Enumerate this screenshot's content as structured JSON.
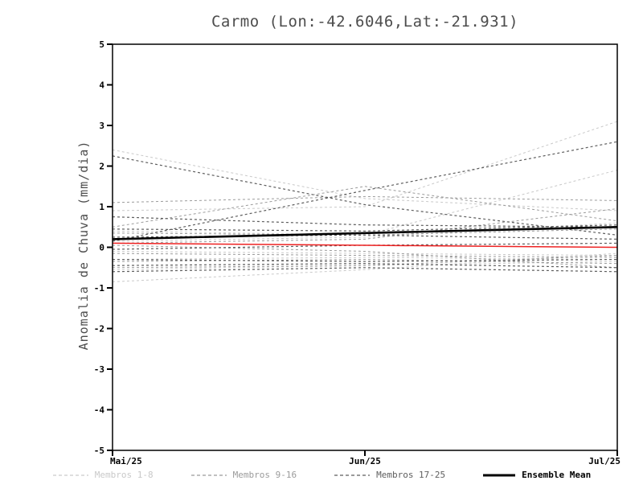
{
  "title": "Carmo (Lon:-42.6046,Lat:-21.931)",
  "ylabel": "Anomalia de Chuva (mm/dia)",
  "legend": {
    "items": [
      {
        "label": "Membros 1-8",
        "color": "#c9c9c9",
        "dash": true
      },
      {
        "label": "Membros 9-16",
        "color": "#9b9b9b",
        "dash": true
      },
      {
        "label": "Membros 17-25",
        "color": "#5e5e5e",
        "dash": true
      },
      {
        "label": "Ensemble Mean",
        "color": "#000000",
        "dash": false
      }
    ]
  },
  "chart_data": {
    "type": "line",
    "title": "Carmo (Lon:-42.6046,Lat:-21.931)",
    "xlabel": "",
    "ylabel": "Anomalia de Chuva (mm/dia)",
    "x_ticks": [
      "Mai/25",
      "Jun/25",
      "Jul/25"
    ],
    "ylim": [
      -5,
      5
    ],
    "y_tick_step": 1,
    "grid": false,
    "legend_position": "bottom",
    "groups": [
      {
        "name": "Membros 1-8",
        "color": "#c9c9c9",
        "dash": "3,3",
        "width": 1
      },
      {
        "name": "Membros 9-16",
        "color": "#9b9b9b",
        "dash": "3,3",
        "width": 1
      },
      {
        "name": "Membros 17-25",
        "color": "#5e5e5e",
        "dash": "3,3",
        "width": 1.2
      },
      {
        "name": "Ensemble Mean",
        "color": "#000000",
        "dash": null,
        "width": 2.6
      }
    ],
    "series": [
      {
        "name": "member-1",
        "group": 0,
        "values": [
          2.4,
          1.2,
          0.9
        ]
      },
      {
        "name": "member-2",
        "group": 0,
        "values": [
          0.9,
          1.0,
          3.1
        ]
      },
      {
        "name": "member-3",
        "group": 0,
        "values": [
          0.4,
          0.3,
          1.9
        ]
      },
      {
        "name": "member-4",
        "group": 0,
        "values": [
          0.15,
          0.25,
          0.6
        ]
      },
      {
        "name": "member-5",
        "group": 0,
        "values": [
          -0.1,
          -0.15,
          -0.2
        ]
      },
      {
        "name": "member-6",
        "group": 0,
        "values": [
          -0.3,
          -0.25,
          -0.3
        ]
      },
      {
        "name": "member-7",
        "group": 0,
        "values": [
          -0.55,
          -0.45,
          -0.35
        ]
      },
      {
        "name": "member-8",
        "group": 0,
        "values": [
          -0.85,
          -0.55,
          -0.15
        ]
      },
      {
        "name": "member-9",
        "group": 1,
        "values": [
          1.1,
          1.25,
          1.15
        ]
      },
      {
        "name": "member-10",
        "group": 1,
        "values": [
          0.5,
          1.5,
          0.65
        ]
      },
      {
        "name": "member-11",
        "group": 1,
        "values": [
          0.35,
          0.3,
          0.45
        ]
      },
      {
        "name": "member-12",
        "group": 1,
        "values": [
          0.1,
          0.2,
          0.95
        ]
      },
      {
        "name": "member-13",
        "group": 1,
        "values": [
          -0.15,
          -0.2,
          -0.25
        ]
      },
      {
        "name": "member-14",
        "group": 1,
        "values": [
          -0.35,
          -0.3,
          -0.4
        ]
      },
      {
        "name": "member-15",
        "group": 1,
        "values": [
          -0.5,
          -0.45,
          -0.2
        ]
      },
      {
        "name": "member-16",
        "group": 1,
        "values": [
          0.05,
          -0.1,
          -0.5
        ]
      },
      {
        "name": "member-17",
        "group": 2,
        "values": [
          2.25,
          1.05,
          0.3
        ]
      },
      {
        "name": "member-18",
        "group": 2,
        "values": [
          0.75,
          0.55,
          0.5
        ]
      },
      {
        "name": "member-19",
        "group": 2,
        "values": [
          0.45,
          0.4,
          0.55
        ]
      },
      {
        "name": "member-20",
        "group": 2,
        "values": [
          0.25,
          0.3,
          0.2
        ]
      },
      {
        "name": "member-21",
        "group": 2,
        "values": [
          -0.05,
          0.05,
          0.1
        ]
      },
      {
        "name": "member-22",
        "group": 2,
        "values": [
          -0.3,
          -0.35,
          -0.3
        ]
      },
      {
        "name": "member-23",
        "group": 2,
        "values": [
          -0.45,
          -0.4,
          -0.5
        ]
      },
      {
        "name": "member-24",
        "group": 2,
        "values": [
          -0.6,
          -0.5,
          -0.6
        ]
      },
      {
        "name": "member-25",
        "group": 2,
        "values": [
          0.15,
          1.4,
          2.6
        ]
      },
      {
        "name": "red-reference-line",
        "color": "#ee2222",
        "width": 1.5,
        "dash": null,
        "values": [
          0.1,
          0.05,
          0.0
        ]
      },
      {
        "name": "Ensemble Mean",
        "group": 3,
        "values": [
          0.2,
          0.35,
          0.5
        ]
      }
    ]
  }
}
